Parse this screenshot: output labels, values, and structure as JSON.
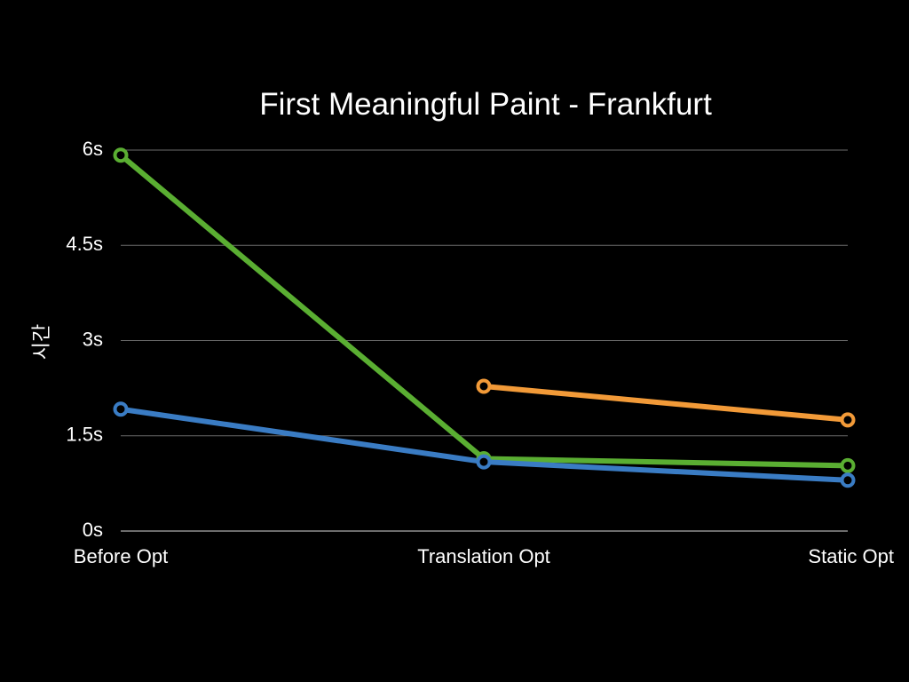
{
  "chart_data": {
    "type": "line",
    "title": "First Meaningful Paint - Frankfurt",
    "xlabel": "",
    "ylabel": "시간",
    "categories": [
      "Before Opt",
      "Translation Opt",
      "Static Opt"
    ],
    "y_ticks": [
      0,
      1.5,
      3,
      4.5,
      6
    ],
    "y_tick_labels": [
      "0s",
      "1.5s",
      "3s",
      "4.5s",
      "6s"
    ],
    "ylim": [
      0,
      6
    ],
    "grid": true,
    "legend": "none",
    "series": [
      {
        "color": "#5AAE32",
        "values": [
          5.92,
          1.14,
          1.03
        ]
      },
      {
        "color": "#F29A38",
        "values": [
          null,
          2.28,
          1.75
        ]
      },
      {
        "color": "#3A7CC4",
        "values": [
          1.92,
          1.09,
          0.8
        ]
      }
    ]
  }
}
